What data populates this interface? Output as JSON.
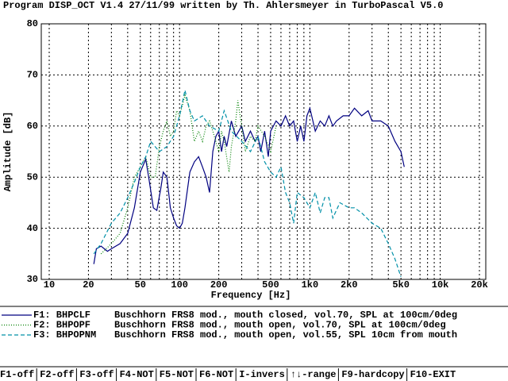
{
  "header": {
    "title": "Program DISP_OCT V1.4 27/11/99 written by Th. Ahlersmeyer in TurboPascal V5.0"
  },
  "chart_data": {
    "type": "line",
    "xscale": "log",
    "grid": true,
    "xlabel": "Frequency [Hz]",
    "ylabel": "Amplitude [dB]",
    "xlim": [
      10,
      20000
    ],
    "ylim": [
      30,
      80
    ],
    "xticks": [
      10,
      20,
      50,
      100,
      200,
      500,
      {
        "value": 1000,
        "label": "1k0"
      },
      {
        "value": 2000,
        "label": "2k0"
      },
      {
        "value": 5000,
        "label": "5k0"
      },
      {
        "value": 10000,
        "label": "10k"
      },
      {
        "value": 20000,
        "label": "20k"
      }
    ],
    "xgrid_minor": [
      30,
      40,
      60,
      70,
      80,
      90,
      300,
      400,
      600,
      700,
      800,
      900,
      3000,
      4000,
      6000,
      7000,
      8000,
      9000
    ],
    "yticks": [
      30,
      40,
      50,
      60,
      70,
      80
    ],
    "series": [
      {
        "name": "F1: BHPCLF",
        "description": "Buschhorn FRS8 mod., mouth closed, vol.70, SPL at 100cm/0deg",
        "color": "#000080",
        "style": "solid",
        "x": [
          22,
          23,
          25,
          28,
          30,
          35,
          40,
          45,
          50,
          55,
          58,
          63,
          67,
          72,
          75,
          80,
          85,
          90,
          95,
          100,
          105,
          110,
          120,
          130,
          140,
          150,
          160,
          170,
          180,
          190,
          200,
          210,
          220,
          230,
          250,
          270,
          300,
          320,
          350,
          380,
          400,
          420,
          450,
          480,
          500,
          550,
          600,
          650,
          700,
          750,
          800,
          850,
          900,
          950,
          1000,
          1100,
          1200,
          1300,
          1400,
          1500,
          1600,
          1800,
          2000,
          2200,
          2500,
          2800,
          3000,
          3500,
          4000,
          4500,
          5000,
          5300
        ],
        "values": [
          33,
          36,
          36.5,
          35.5,
          36,
          37,
          39,
          44,
          51,
          53.5,
          50,
          44,
          43.5,
          48,
          51,
          50,
          44,
          42,
          40.5,
          40,
          41,
          44,
          51,
          53,
          54,
          52,
          50,
          47,
          55,
          58,
          59,
          55,
          58,
          56,
          61,
          58,
          60,
          57,
          59,
          57,
          58,
          55,
          59,
          54,
          59,
          61,
          60,
          62,
          60,
          61,
          57,
          60,
          57,
          62,
          63.5,
          59,
          61,
          60,
          62,
          60,
          61,
          62,
          62,
          63.5,
          62,
          63,
          61,
          61,
          60,
          57,
          55,
          52
        ]
      },
      {
        "name": "F2: BHPOPF",
        "description": "Buschhorn FRS8 mod., mouth open,   vol.70, SPL at 100cm/0deg",
        "color": "#008000",
        "style": "dotted",
        "x": [
          25,
          30,
          35,
          40,
          45,
          50,
          55,
          60,
          65,
          70,
          75,
          80,
          85,
          90,
          95,
          100,
          105,
          110,
          120,
          130,
          140,
          150,
          160,
          170,
          180,
          200,
          210,
          220,
          240,
          250,
          270,
          280,
          300,
          320,
          350,
          380,
          400,
          450,
          500,
          550
        ],
        "values": [
          35,
          37,
          39,
          44,
          50,
          52,
          54,
          50,
          50,
          56,
          59,
          61,
          58,
          59,
          63,
          62,
          64,
          66,
          63,
          57,
          59,
          57,
          60,
          61,
          59,
          55,
          59,
          57,
          51,
          56,
          61,
          65,
          60,
          55,
          58,
          57,
          60,
          58,
          55,
          60
        ]
      },
      {
        "name": "F3: BHPOPNM",
        "description": "Buschhorn FRS8 mod., mouth open,   vol.55, SPL 10cm from mouth",
        "color": "#0090a8",
        "style": "dashed",
        "x": [
          22,
          25,
          30,
          35,
          40,
          45,
          50,
          55,
          60,
          70,
          80,
          90,
          100,
          110,
          120,
          130,
          150,
          170,
          200,
          220,
          250,
          300,
          350,
          400,
          450,
          500,
          550,
          600,
          650,
          700,
          750,
          800,
          900,
          1000,
          1100,
          1200,
          1300,
          1400,
          1500,
          1700,
          2000,
          2200,
          2500,
          3000,
          3500,
          4000,
          4500,
          5000
        ],
        "values": [
          35,
          37,
          41,
          43,
          46,
          49,
          52,
          54,
          57,
          55,
          56,
          58,
          62,
          67,
          63,
          61,
          62,
          60,
          59,
          63,
          59,
          57,
          55,
          58,
          53,
          51,
          50,
          52,
          47,
          45,
          41,
          47,
          46,
          44,
          47,
          43,
          46,
          46,
          42,
          45,
          44,
          44,
          43,
          41,
          40,
          37,
          34,
          30.5
        ]
      }
    ]
  },
  "footer": {
    "keys": [
      "F1-off",
      "F2-off",
      "F3-off",
      "F4-NOT",
      "F5-NOT",
      "F6-NOT",
      "I-invers",
      "↑↓-range",
      "F9-hardcopy",
      "F10-EXIT"
    ]
  }
}
